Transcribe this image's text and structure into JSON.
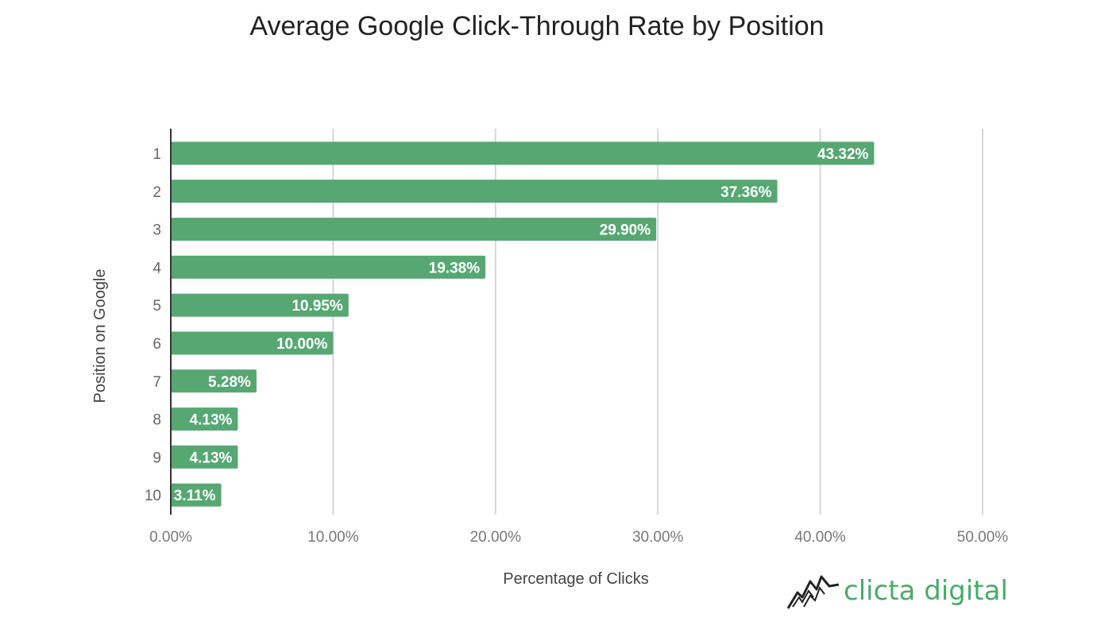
{
  "chart_data": {
    "type": "bar",
    "orientation": "horizontal",
    "title": "Average Google Click-Through Rate by Position",
    "xlabel": "Percentage of Clicks",
    "ylabel": "Position on Google",
    "categories": [
      "1",
      "2",
      "3",
      "4",
      "5",
      "6",
      "7",
      "8",
      "9",
      "10"
    ],
    "values": [
      43.32,
      37.36,
      29.9,
      19.38,
      10.95,
      10.0,
      5.28,
      4.13,
      4.13,
      3.11
    ],
    "data_labels": [
      "43.32%",
      "37.36%",
      "29.90%",
      "19.38%",
      "10.95%",
      "10.00%",
      "5.28%",
      "4.13%",
      "4.13%",
      "3.11%"
    ],
    "xlim": [
      0,
      50
    ],
    "xticks": [
      0,
      10,
      20,
      30,
      40,
      50
    ],
    "xtick_labels": [
      "0.00%",
      "10.00%",
      "20.00%",
      "30.00%",
      "40.00%",
      "50.00%"
    ],
    "grid": "vertical",
    "legend": "none",
    "bar_color": "#57a773"
  },
  "branding": {
    "logo_text": "clicta digital",
    "logo_color": "#4aaa6a"
  }
}
